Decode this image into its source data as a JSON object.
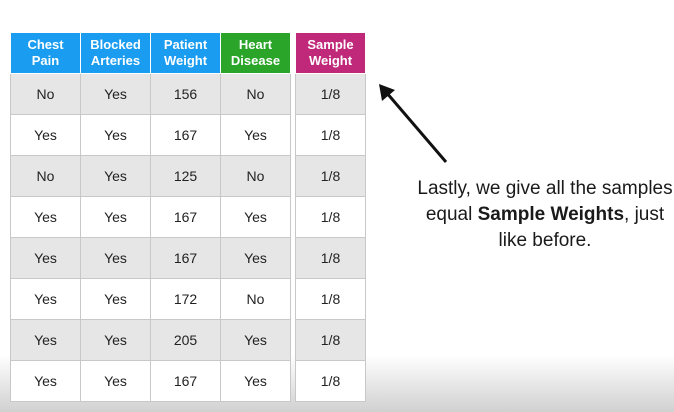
{
  "main_table": {
    "headers": [
      {
        "line1": "Chest",
        "line2": "Pain",
        "color": "#1a9cf0"
      },
      {
        "line1": "Blocked",
        "line2": "Arteries",
        "color": "#1a9cf0"
      },
      {
        "line1": "Patient",
        "line2": "Weight",
        "color": "#1a9cf0"
      },
      {
        "line1": "Heart",
        "line2": "Disease",
        "color": "#2aa52a"
      }
    ],
    "rows": [
      [
        "No",
        "Yes",
        "156",
        "No"
      ],
      [
        "Yes",
        "Yes",
        "167",
        "Yes"
      ],
      [
        "No",
        "Yes",
        "125",
        "No"
      ],
      [
        "Yes",
        "Yes",
        "167",
        "Yes"
      ],
      [
        "Yes",
        "Yes",
        "167",
        "Yes"
      ],
      [
        "Yes",
        "Yes",
        "172",
        "No"
      ],
      [
        "Yes",
        "Yes",
        "205",
        "Yes"
      ],
      [
        "Yes",
        "Yes",
        "167",
        "Yes"
      ]
    ]
  },
  "weight_table": {
    "header": {
      "line1": "Sample",
      "line2": "Weight",
      "color": "#c0287a"
    },
    "values": [
      "1/8",
      "1/8",
      "1/8",
      "1/8",
      "1/8",
      "1/8",
      "1/8",
      "1/8"
    ]
  },
  "caption": {
    "before": "Lastly, we give all the samples equal ",
    "bold": "Sample Weights",
    "after": ", just like before."
  }
}
